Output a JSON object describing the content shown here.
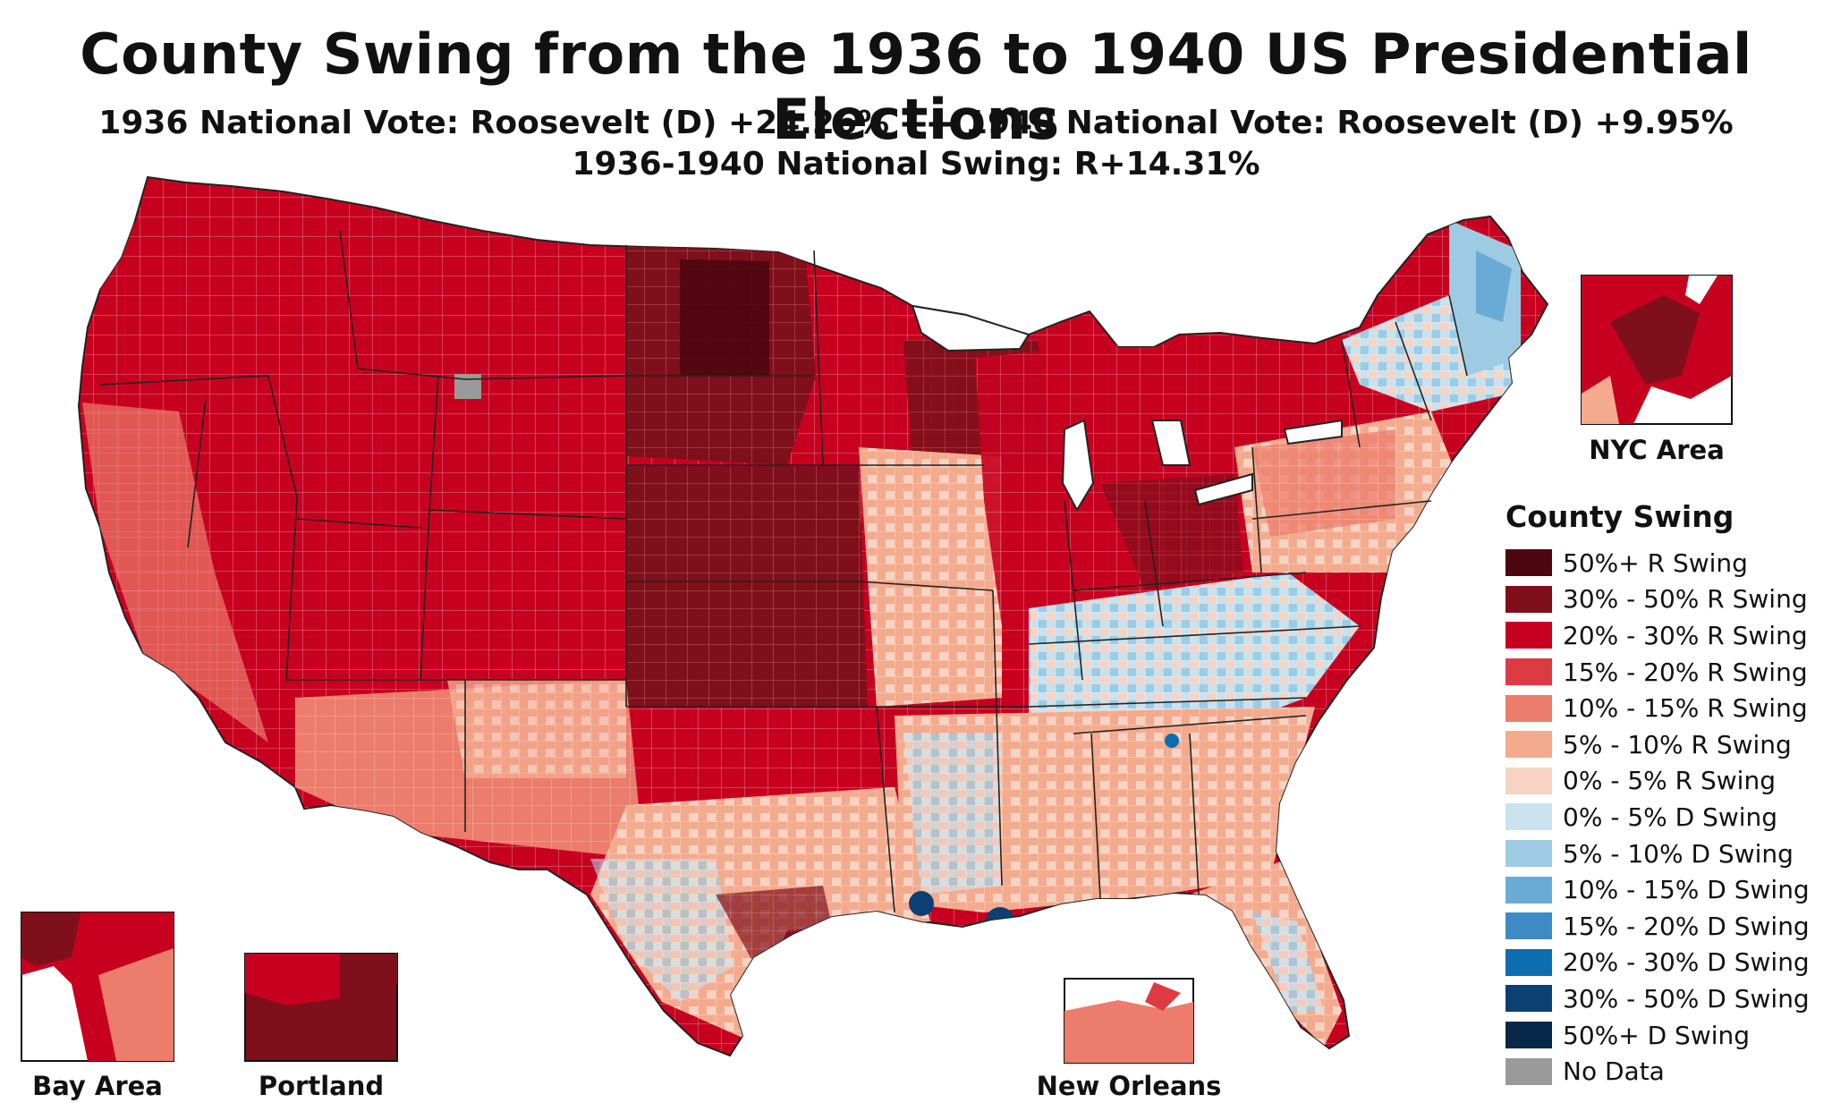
{
  "title": "County Swing from the 1936 to 1940 US Presidential Elections",
  "subtitle_line1": "1936 National Vote: Roosevelt (D) +24.26% ---- 1940 National Vote: Roosevelt (D) +9.95%",
  "subtitle_line2": "1936-1940 National Swing: R+14.31%",
  "legend": {
    "title": "County Swing",
    "items": [
      {
        "label": "50%+ R Swing",
        "color": "#4d0510"
      },
      {
        "label": "30% - 50% R Swing",
        "color": "#7f0f1b"
      },
      {
        "label": "20% - 30% R Swing",
        "color": "#c8001f"
      },
      {
        "label": "15% - 20% R Swing",
        "color": "#dd3b43"
      },
      {
        "label": "10% - 15% R Swing",
        "color": "#ec7c6b"
      },
      {
        "label": "5% - 10% R Swing",
        "color": "#f3aa8d"
      },
      {
        "label": "0% - 5% R Swing",
        "color": "#f7d3c5"
      },
      {
        "label": "0% - 5% D Swing",
        "color": "#c9e2ee"
      },
      {
        "label": "5% - 10% D Swing",
        "color": "#9dcbe3"
      },
      {
        "label": "10% - 15% D Swing",
        "color": "#6aabd6"
      },
      {
        "label": "15% - 20% D Swing",
        "color": "#3d8bc5"
      },
      {
        "label": "20% - 30% D Swing",
        "color": "#0e6db0"
      },
      {
        "label": "30% - 50% D Swing",
        "color": "#0c3f72"
      },
      {
        "label": "50%+ D Swing",
        "color": "#08284a"
      },
      {
        "label": "No Data",
        "color": "#9a9a9a"
      }
    ]
  },
  "insets": {
    "nyc": "NYC Area",
    "bay_area": "Bay Area",
    "portland": "Portland",
    "new_orleans": "New Orleans"
  }
}
